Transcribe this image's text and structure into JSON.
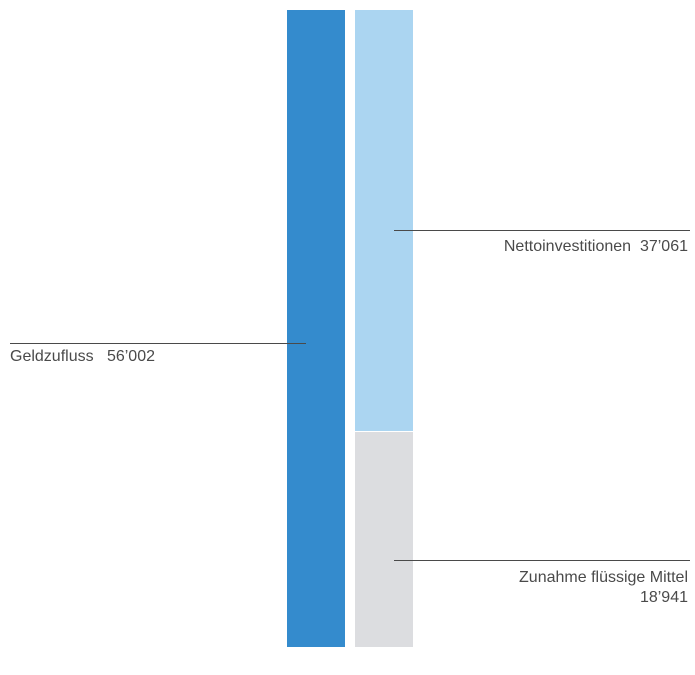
{
  "chart_data": {
    "type": "bar",
    "stacked": true,
    "ylim": [
      0,
      56002
    ],
    "bars": [
      {
        "segments": [
          {
            "name": "Geldzufluss",
            "value_label": "56’002",
            "value": 56002,
            "color": "#348bcd"
          }
        ]
      },
      {
        "segments": [
          {
            "name": "Zunahme flüssige Mittel",
            "value_label": "18’941",
            "value": 18941,
            "color": "#dcdde0"
          },
          {
            "name": "Nettoinvestitionen",
            "value_label": "37’061",
            "value": 37061,
            "color": "#abd5f1"
          }
        ]
      }
    ],
    "line_color": "#4a4a4a"
  }
}
